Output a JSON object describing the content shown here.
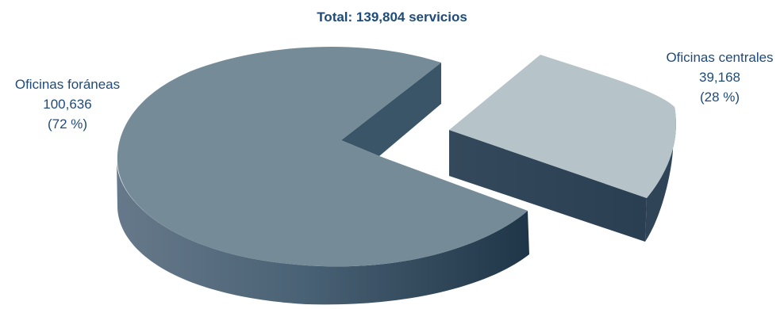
{
  "chart_data": {
    "type": "pie",
    "title": "Total: 139,804 servicios",
    "slices": [
      {
        "name": "Oficinas foráneas",
        "value": 100636,
        "value_label": "100,636",
        "percent_label": "(72 %)",
        "color": "#758b98"
      },
      {
        "name": "Oficinas centrales",
        "value": 39168,
        "value_label": "39,168",
        "percent_label": "(28 %)",
        "color": "#b6c3c9"
      }
    ],
    "exploded_slice": "Oficinas centrales",
    "style": "3d"
  },
  "colors": {
    "text": "#1e4b7a",
    "side_dark": "#23394d",
    "side_light": "#66798a",
    "inner_wall": "#3a5468"
  }
}
